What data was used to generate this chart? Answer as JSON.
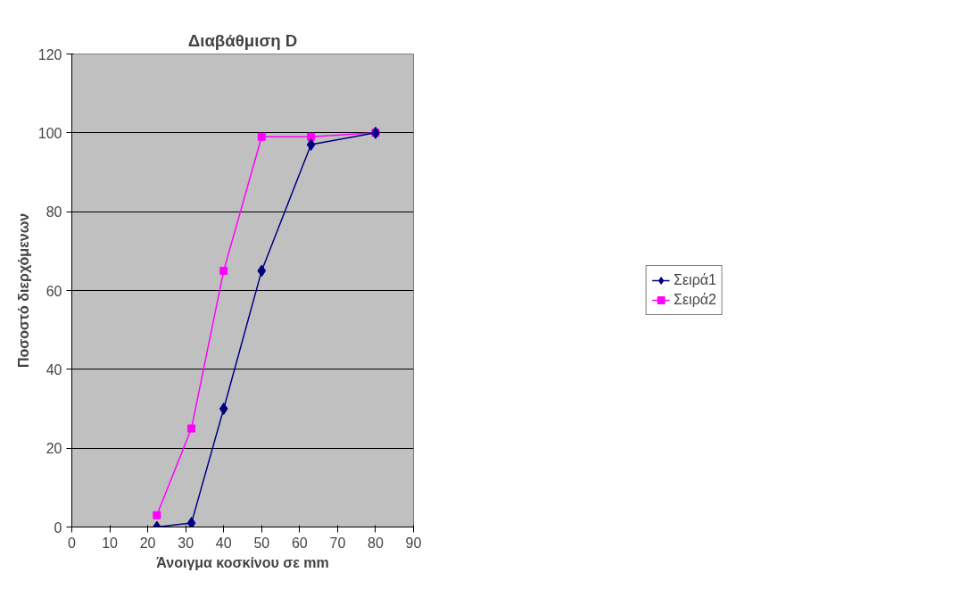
{
  "chart_data": {
    "type": "line",
    "title": "Διαβάθμιση D",
    "xlabel": "Άνοιγμα κοσκίνου σε mm",
    "ylabel": "Ποσοστό διερχόμενων",
    "xlim": [
      0,
      90
    ],
    "xticks": [
      0,
      10,
      20,
      30,
      40,
      50,
      60,
      70,
      80,
      90
    ],
    "ylim": [
      0,
      120
    ],
    "yticks": [
      0,
      20,
      40,
      60,
      80,
      100,
      120
    ],
    "grid": "y",
    "legend": "right",
    "line_style": "solid",
    "series": [
      {
        "name": "Σειρά1",
        "color": "#000080",
        "marker": "diamond",
        "x": [
          22.4,
          31.5,
          40,
          50,
          63,
          80
        ],
        "values": [
          0,
          1,
          30,
          65,
          97,
          100
        ]
      },
      {
        "name": "Σειρά2",
        "color": "#ff00ff",
        "marker": "square",
        "x": [
          22.4,
          31.5,
          40,
          50,
          63,
          80
        ],
        "values": [
          3,
          25,
          65,
          99,
          99,
          100
        ]
      }
    ]
  }
}
